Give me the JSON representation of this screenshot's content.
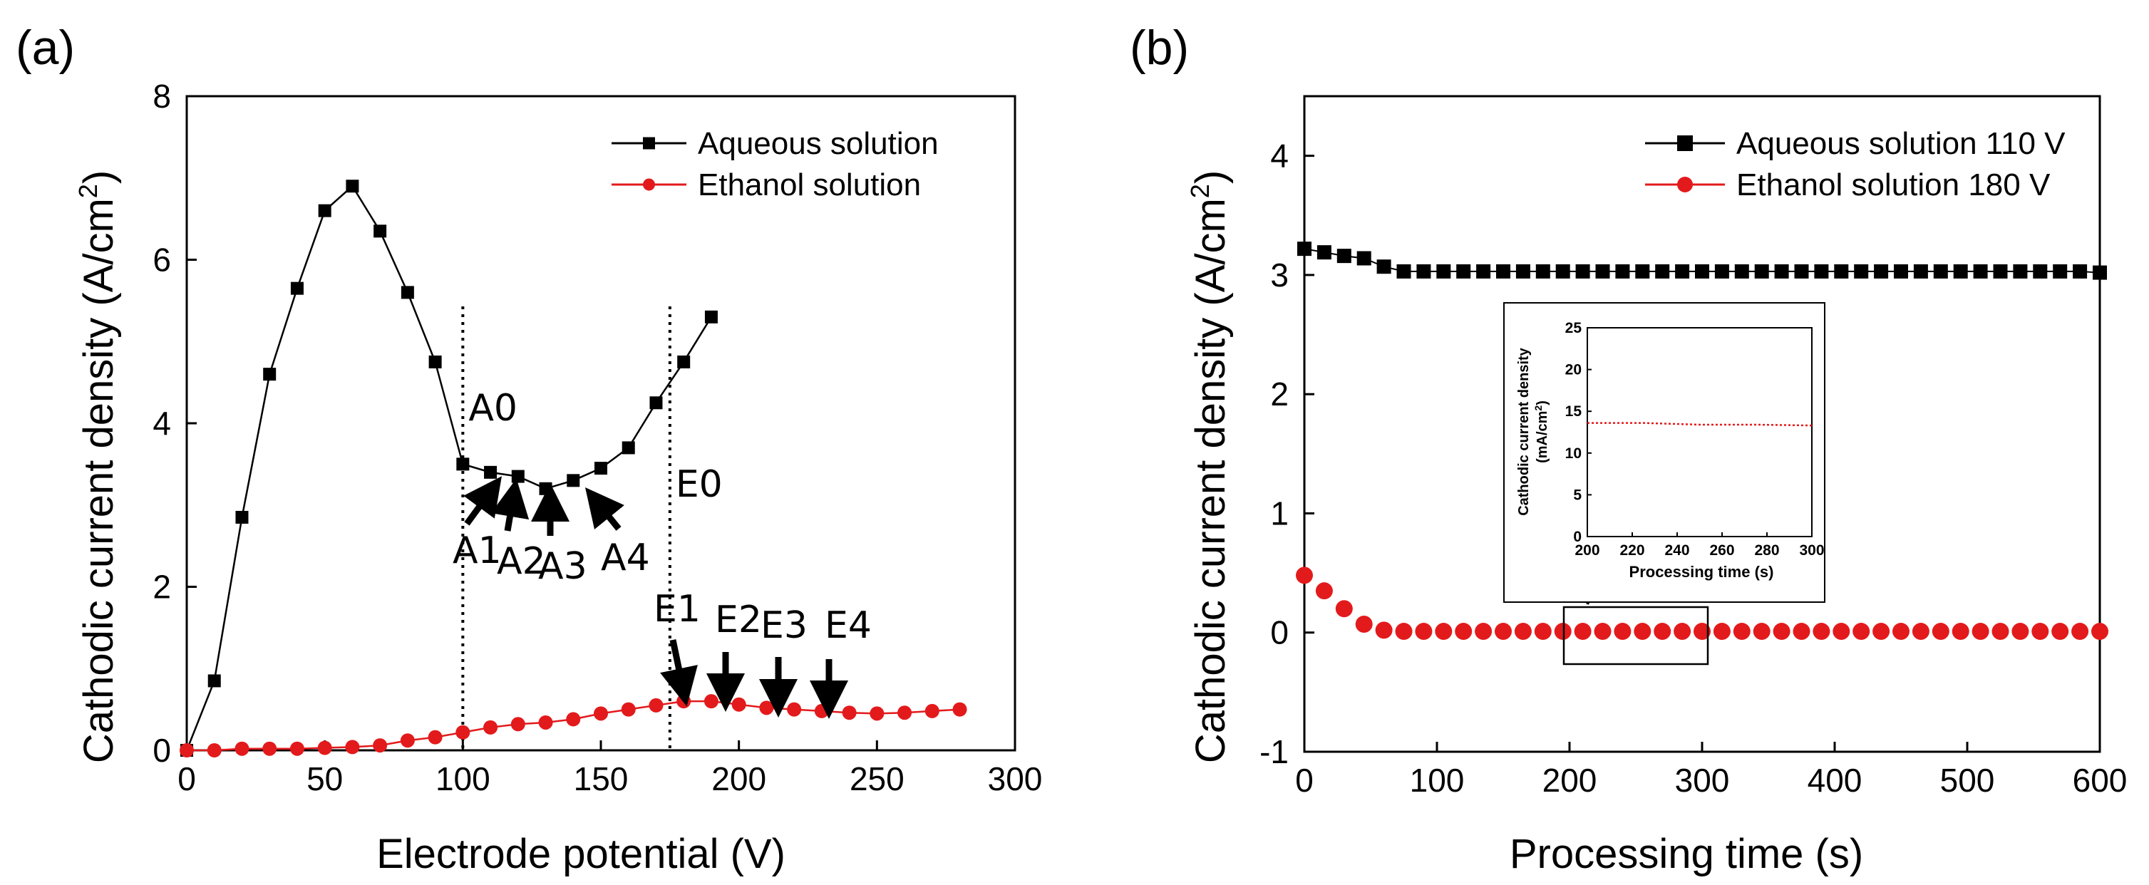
{
  "figure": {
    "panel_a_label": "(a)",
    "panel_b_label": "(b)"
  },
  "colors": {
    "aqueous": "#000000",
    "ethanol": "#e31a1c",
    "axis": "#000000"
  },
  "chart_data": [
    {
      "id": "a",
      "type": "line",
      "title": "",
      "xlabel": "Electrode potential (V)",
      "ylabel": "Cathodic current density (A/cm",
      "ylabel_sup": "2",
      "ylabel_end": ")",
      "xlim": [
        0,
        300
      ],
      "ylim": [
        0,
        8
      ],
      "xticks": [
        0,
        50,
        100,
        150,
        200,
        250,
        300
      ],
      "yticks": [
        0,
        2,
        4,
        6,
        8
      ],
      "legend_position": "top-right",
      "series": [
        {
          "name": "Aqueous solution",
          "marker": "square",
          "color": "#000000",
          "x": [
            0,
            10,
            20,
            30,
            40,
            50,
            60,
            70,
            80,
            90,
            100,
            110,
            120,
            130,
            140,
            150,
            160,
            170,
            180,
            190
          ],
          "y": [
            0,
            0.85,
            2.85,
            4.6,
            5.65,
            6.6,
            6.9,
            6.35,
            5.6,
            4.75,
            3.5,
            3.4,
            3.35,
            3.2,
            3.3,
            3.45,
            3.7,
            4.25,
            4.75,
            5.3
          ]
        },
        {
          "name": "Ethanol solution",
          "marker": "circle",
          "color": "#e31a1c",
          "x": [
            0,
            10,
            20,
            30,
            40,
            50,
            60,
            70,
            80,
            90,
            100,
            110,
            120,
            130,
            140,
            150,
            160,
            170,
            180,
            190,
            200,
            210,
            220,
            230,
            240,
            250,
            260,
            270,
            280
          ],
          "y": [
            0,
            0.0,
            0.02,
            0.02,
            0.02,
            0.03,
            0.04,
            0.06,
            0.12,
            0.16,
            0.22,
            0.28,
            0.32,
            0.34,
            0.38,
            0.45,
            0.5,
            0.55,
            0.6,
            0.6,
            0.56,
            0.52,
            0.5,
            0.48,
            0.46,
            0.45,
            0.46,
            0.48,
            0.5
          ]
        }
      ],
      "vlines": [
        {
          "x": 100,
          "label": "A0"
        },
        {
          "x": 175,
          "label": "E0"
        }
      ],
      "annotations": [
        {
          "text": "A1",
          "x": 110,
          "y": 3.4,
          "arrow": "up-right"
        },
        {
          "text": "A2",
          "x": 120,
          "y": 3.35,
          "arrow": "up"
        },
        {
          "text": "A3",
          "x": 130,
          "y": 3.2,
          "arrow": "up"
        },
        {
          "text": "A4",
          "x": 140,
          "y": 3.3,
          "arrow": "up-left"
        },
        {
          "text": "E1",
          "x": 180,
          "y": 0.6,
          "arrow": "down"
        },
        {
          "text": "E2",
          "x": 200,
          "y": 0.56,
          "arrow": "down"
        },
        {
          "text": "E3",
          "x": 220,
          "y": 0.5,
          "arrow": "down"
        },
        {
          "text": "E4",
          "x": 240,
          "y": 0.46,
          "arrow": "down"
        }
      ]
    },
    {
      "id": "b",
      "type": "scatter",
      "title": "",
      "xlabel": "Processing time (s)",
      "ylabel": "Cathodic current density (A/cm",
      "ylabel_sup": "2",
      "ylabel_end": ")",
      "xlim": [
        0,
        600
      ],
      "ylim": [
        -1,
        4.5
      ],
      "xticks": [
        0,
        100,
        200,
        300,
        400,
        500,
        600
      ],
      "yticks": [
        -1,
        0,
        1,
        2,
        3,
        4
      ],
      "legend_position": "top-right",
      "series": [
        {
          "name": "Aqueous solution 110 V",
          "marker": "square",
          "color": "#000000",
          "x": [
            0,
            15,
            30,
            45,
            60,
            75,
            90,
            105,
            120,
            135,
            150,
            165,
            180,
            195,
            210,
            225,
            240,
            255,
            270,
            285,
            300,
            315,
            330,
            345,
            360,
            375,
            390,
            405,
            420,
            435,
            450,
            465,
            480,
            495,
            510,
            525,
            540,
            555,
            570,
            585,
            600
          ],
          "y": [
            3.22,
            3.19,
            3.16,
            3.14,
            3.07,
            3.03,
            3.03,
            3.03,
            3.03,
            3.03,
            3.03,
            3.03,
            3.03,
            3.03,
            3.03,
            3.03,
            3.03,
            3.03,
            3.03,
            3.03,
            3.03,
            3.03,
            3.03,
            3.03,
            3.03,
            3.03,
            3.03,
            3.03,
            3.03,
            3.03,
            3.03,
            3.03,
            3.03,
            3.03,
            3.03,
            3.03,
            3.03,
            3.03,
            3.03,
            3.03,
            3.02
          ]
        },
        {
          "name": "Ethanol solution 180 V",
          "marker": "circle",
          "color": "#e31a1c",
          "x": [
            0,
            15,
            30,
            45,
            60,
            75,
            90,
            105,
            120,
            135,
            150,
            165,
            180,
            195,
            210,
            225,
            240,
            255,
            270,
            285,
            300,
            315,
            330,
            345,
            360,
            375,
            390,
            405,
            420,
            435,
            450,
            465,
            480,
            495,
            510,
            525,
            540,
            555,
            570,
            585,
            600
          ],
          "y": [
            0.48,
            0.35,
            0.2,
            0.07,
            0.02,
            0.01,
            0.01,
            0.01,
            0.01,
            0.01,
            0.01,
            0.01,
            0.01,
            0.01,
            0.01,
            0.01,
            0.01,
            0.01,
            0.01,
            0.01,
            0.01,
            0.01,
            0.01,
            0.01,
            0.01,
            0.01,
            0.01,
            0.01,
            0.01,
            0.01,
            0.01,
            0.01,
            0.01,
            0.01,
            0.01,
            0.01,
            0.01,
            0.01,
            0.01,
            0.01,
            0.01
          ]
        }
      ],
      "zoom_box": {
        "x_range": [
          200,
          300
        ]
      },
      "inset": {
        "type": "line",
        "xlabel": "Processing time (s)",
        "ylabel_line1": "Cathodic current density",
        "ylabel_line2": "(mA/cm",
        "ylabel_sup": "2",
        "ylabel_end": ")",
        "xlim": [
          200,
          300
        ],
        "ylim": [
          0,
          25
        ],
        "xticks": [
          200,
          220,
          240,
          260,
          280,
          300
        ],
        "yticks": [
          0,
          5,
          10,
          15,
          20,
          25
        ],
        "series": [
          {
            "name": "Ethanol solution 180 V",
            "color": "#e31a1c",
            "x": [
              200,
              225,
              250,
              275,
              300
            ],
            "y": [
              13.6,
              13.6,
              13.4,
              13.4,
              13.3
            ]
          }
        ]
      }
    }
  ]
}
